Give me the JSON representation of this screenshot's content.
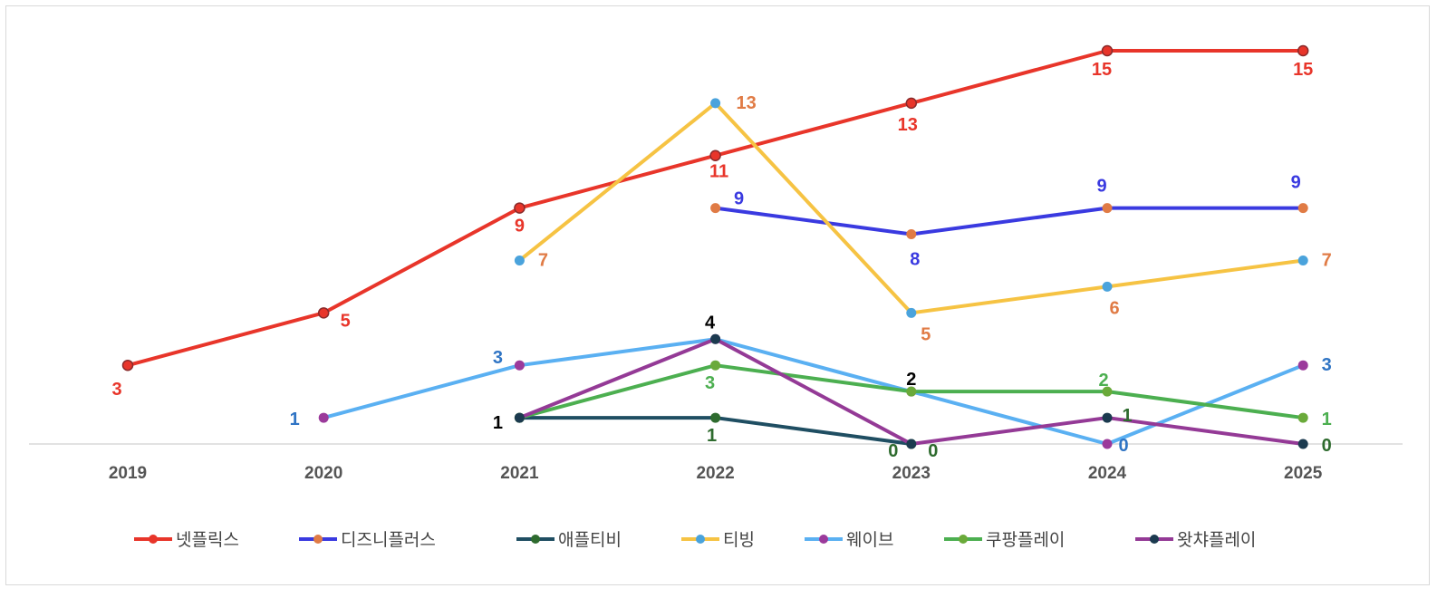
{
  "chart_data": {
    "type": "line",
    "title": "",
    "xlabel": "",
    "ylabel": "",
    "categories": [
      "2019",
      "2020",
      "2021",
      "2022",
      "2023",
      "2024",
      "2025"
    ],
    "ylim": [
      0,
      15
    ],
    "grid": false,
    "legend_position": "bottom",
    "series": [
      {
        "name": "넷플릭스",
        "values": [
          3,
          5,
          9,
          11,
          13,
          15,
          15
        ],
        "line_color": "#e8352a",
        "marker_color": "#e8352a",
        "label_color": "#e8352a"
      },
      {
        "name": "디즈니플러스",
        "values": [
          null,
          null,
          null,
          9,
          8,
          9,
          9
        ],
        "line_color": "#3a3ae0",
        "marker_color": "#e07b45",
        "label_color": "#3a3ae0"
      },
      {
        "name": "애플티비",
        "values": [
          null,
          null,
          1,
          1,
          0,
          null,
          null
        ],
        "line_color": "#1f4e62",
        "marker_color": "#2e6b2e",
        "label_color": "#2e6b2e"
      },
      {
        "name": "티빙",
        "values": [
          null,
          null,
          7,
          13,
          5,
          6,
          7
        ],
        "line_color": "#f6c343",
        "marker_color": "#4aa3dc",
        "label_color": "#e07b45"
      },
      {
        "name": "웨이브",
        "values": [
          null,
          1,
          3,
          4,
          2,
          0,
          3
        ],
        "line_color": "#5ab0f2",
        "marker_color": "#9b3a9b",
        "label_color": "#2f74c4"
      },
      {
        "name": "쿠팡플레이",
        "values": [
          null,
          null,
          1,
          3,
          2,
          2,
          1
        ],
        "line_color": "#4caf50",
        "marker_color": "#6aaa3a",
        "label_color": "#4caf50"
      },
      {
        "name": "왓챠플레이",
        "values": [
          null,
          null,
          1,
          4,
          0,
          1,
          0
        ],
        "line_color": "#943a96",
        "marker_color": "#1b3a4f",
        "label_color": "#2e6b2e"
      }
    ]
  }
}
